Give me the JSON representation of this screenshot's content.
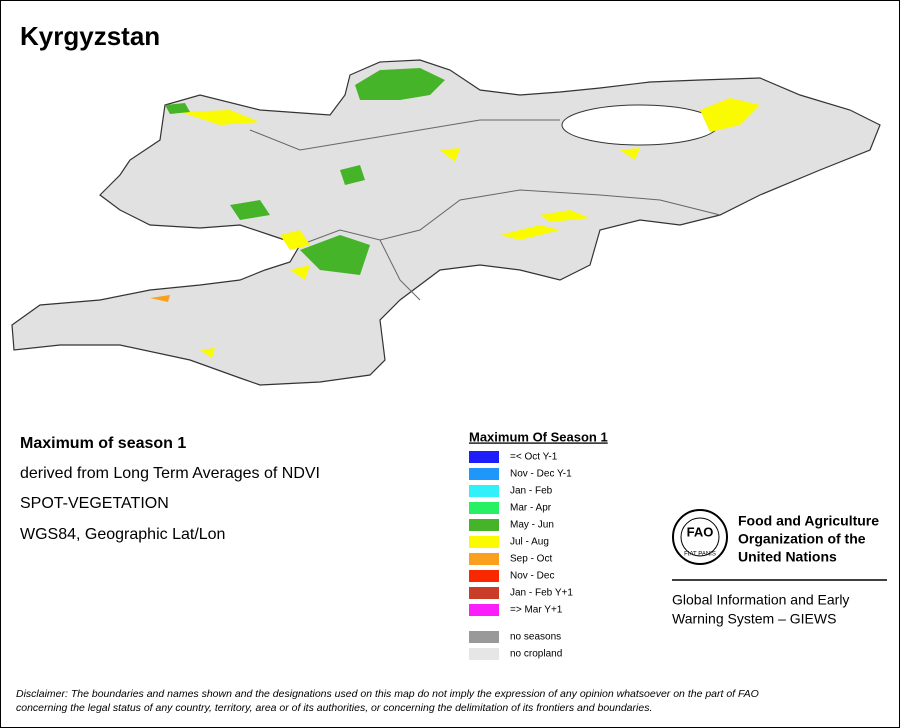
{
  "header": {
    "title": "Kyrgyzstan"
  },
  "info": {
    "lines": [
      "Maximum of season 1",
      "derived from Long Term Averages of NDVI",
      "SPOT-VEGETATION",
      "WGS84, Geographic Lat/Lon"
    ]
  },
  "legend": {
    "title": "Maximum Of Season 1",
    "items": [
      {
        "label": "=< Oct Y-1",
        "color": "#1e1efa"
      },
      {
        "label": "Nov - Dec Y-1",
        "color": "#1e96fa"
      },
      {
        "label": "Jan - Feb",
        "color": "#32f0fa"
      },
      {
        "label": "Mar - Apr",
        "color": "#28f064"
      },
      {
        "label": "May - Jun",
        "color": "#46b428"
      },
      {
        "label": "Jul - Aug",
        "color": "#fafa00"
      },
      {
        "label": "Sep - Oct",
        "color": "#faa01e"
      },
      {
        "label": "Nov - Dec",
        "color": "#fa2800"
      },
      {
        "label": "Jan - Feb Y+1",
        "color": "#c83c28"
      },
      {
        "label": "=> Mar Y+1",
        "color": "#fa1efa"
      }
    ],
    "extra": [
      {
        "label": "no seasons",
        "color": "#999999"
      },
      {
        "label": "no cropland",
        "color": "#e6e6e6"
      }
    ]
  },
  "logo": {
    "emblem": "FAO",
    "motto": "FIAT PANIS",
    "org": [
      "Food and Agriculture",
      "Organization of the",
      "United Nations"
    ],
    "system": [
      "Global Information and Early",
      "Warning System – GIEWS"
    ]
  },
  "disclaimer": [
    "Disclaimer: The boundaries and names shown and the designations used on this map do not imply the expression of any opinion whatsoever on the part of FAO",
    "concerning the legal status of any country, territory, area or of its authorities, or concerning the delimitation of its frontiers and boundaries."
  ]
}
